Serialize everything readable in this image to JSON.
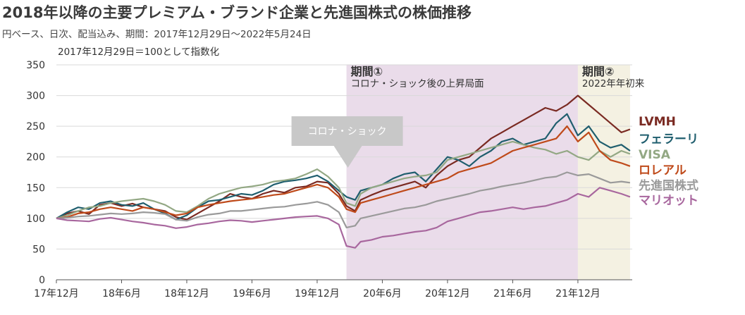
{
  "title": "2018年以降の主要プレミアム・ブランド企業と先進国株式の株価推移",
  "subtitle": "円ベース、日次、配当込み、期間：2017年12月29日～2022年5月24日",
  "chart_data": {
    "type": "line",
    "note": "2017年12月29日＝100として指数化",
    "ylim": [
      0,
      350
    ],
    "yticks": [
      0,
      50,
      100,
      150,
      200,
      250,
      300,
      350
    ],
    "xlim": [
      0,
      53
    ],
    "xticks": [
      {
        "label": "17年12月",
        "x": 0
      },
      {
        "label": "18年6月",
        "x": 6
      },
      {
        "label": "18年12月",
        "x": 12
      },
      {
        "label": "19年6月",
        "x": 18
      },
      {
        "label": "19年12月",
        "x": 24
      },
      {
        "label": "20年6月",
        "x": 30
      },
      {
        "label": "20年12月",
        "x": 36
      },
      {
        "label": "21年6月",
        "x": 42
      },
      {
        "label": "21年12月",
        "x": 48
      }
    ],
    "periods": [
      {
        "title": "期間①",
        "subtitle": "コロナ・ショック後の上昇局面",
        "x_start": 26.7,
        "x_end": 48.0,
        "color": "#eadcea"
      },
      {
        "title": "期間②",
        "subtitle": "2022年年初来",
        "x_start": 48.0,
        "x_end": 52.8,
        "color": "#f4f1e2"
      }
    ],
    "callout": {
      "text": "コロナ・ショック",
      "x": 26.7,
      "color": "#c8c8c8"
    },
    "x_months": [
      0,
      1,
      2,
      3,
      4,
      5,
      6,
      7,
      8,
      9,
      10,
      11,
      12,
      13,
      14,
      15,
      16,
      17,
      18,
      19,
      20,
      21,
      22,
      23,
      24,
      25,
      26,
      26.7,
      27.5,
      28,
      29,
      30,
      31,
      32,
      33,
      34,
      35,
      36,
      37,
      38,
      39,
      40,
      41,
      42,
      43,
      44,
      45,
      46,
      47,
      48,
      49,
      50,
      51,
      52,
      52.8
    ],
    "series": [
      {
        "name": "LVMH",
        "color": "#7a2a22",
        "values": [
          100,
          108,
          112,
          107,
          122,
          125,
          120,
          124,
          118,
          115,
          112,
          102,
          98,
          108,
          118,
          128,
          140,
          135,
          132,
          140,
          145,
          142,
          150,
          152,
          160,
          158,
          140,
          120,
          112,
          130,
          138,
          145,
          150,
          155,
          160,
          150,
          170,
          185,
          195,
          200,
          215,
          230,
          240,
          250,
          260,
          270,
          280,
          275,
          285,
          300,
          285,
          270,
          255,
          240,
          245
        ]
      },
      {
        "name": "フェラーリ",
        "color": "#1f5e6e",
        "values": [
          100,
          110,
          118,
          115,
          125,
          128,
          122,
          120,
          125,
          115,
          108,
          98,
          105,
          118,
          128,
          130,
          135,
          140,
          138,
          145,
          155,
          160,
          162,
          165,
          170,
          160,
          145,
          135,
          130,
          145,
          150,
          155,
          165,
          172,
          175,
          160,
          180,
          200,
          195,
          185,
          200,
          210,
          225,
          230,
          220,
          225,
          230,
          255,
          270,
          235,
          250,
          225,
          215,
          220,
          210
        ]
      },
      {
        "name": "VISA",
        "color": "#93a884",
        "values": [
          100,
          105,
          112,
          118,
          120,
          125,
          128,
          130,
          132,
          128,
          122,
          112,
          110,
          120,
          132,
          140,
          145,
          150,
          152,
          155,
          160,
          162,
          165,
          172,
          180,
          168,
          150,
          125,
          120,
          140,
          150,
          155,
          160,
          165,
          168,
          170,
          175,
          195,
          200,
          205,
          210,
          215,
          220,
          225,
          220,
          215,
          212,
          205,
          210,
          200,
          195,
          210,
          200,
          210,
          205
        ]
      },
      {
        "name": "ロレアル",
        "color": "#bf4a1a",
        "values": [
          100,
          102,
          108,
          110,
          115,
          118,
          115,
          112,
          118,
          115,
          110,
          105,
          108,
          118,
          122,
          125,
          128,
          130,
          132,
          135,
          138,
          140,
          145,
          150,
          155,
          150,
          135,
          115,
          110,
          125,
          130,
          135,
          140,
          145,
          150,
          155,
          160,
          165,
          175,
          180,
          185,
          190,
          200,
          210,
          215,
          220,
          225,
          230,
          250,
          225,
          240,
          210,
          195,
          190,
          185
        ]
      },
      {
        "name": "先進国株式",
        "color": "#9a9a9a",
        "values": [
          100,
          101,
          103,
          104,
          106,
          108,
          107,
          108,
          110,
          109,
          107,
          98,
          96,
          102,
          106,
          108,
          112,
          112,
          114,
          116,
          118,
          119,
          122,
          124,
          127,
          122,
          110,
          85,
          88,
          100,
          104,
          108,
          112,
          116,
          118,
          122,
          128,
          132,
          136,
          140,
          145,
          148,
          152,
          155,
          158,
          162,
          166,
          168,
          175,
          170,
          172,
          165,
          158,
          160,
          158
        ]
      },
      {
        "name": "マリオット",
        "color": "#a8679e",
        "values": [
          100,
          97,
          96,
          95,
          99,
          101,
          98,
          95,
          93,
          90,
          88,
          84,
          86,
          90,
          92,
          95,
          97,
          96,
          94,
          96,
          98,
          100,
          102,
          103,
          104,
          100,
          90,
          55,
          52,
          62,
          65,
          70,
          72,
          75,
          78,
          80,
          85,
          95,
          100,
          105,
          110,
          112,
          115,
          118,
          115,
          118,
          120,
          125,
          130,
          140,
          135,
          150,
          145,
          140,
          135
        ]
      }
    ]
  }
}
